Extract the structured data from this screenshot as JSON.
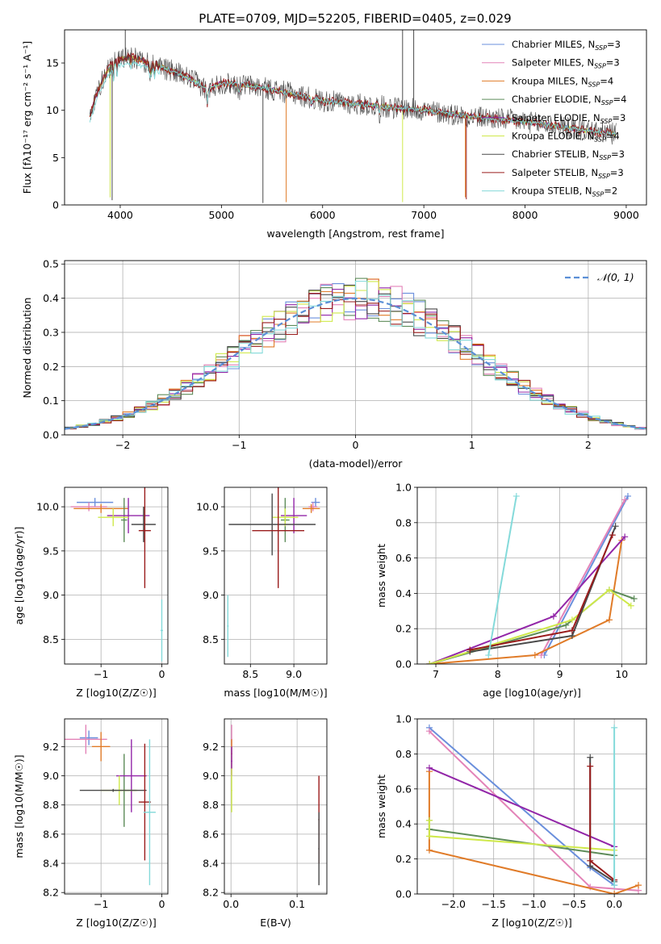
{
  "title": "PLATE=0709, MJD=52205, FIBERID=0405, z=0.029",
  "colors": {
    "chabrier_miles": "#6a8fdc",
    "salpeter_miles": "#e383b8",
    "kroupa_miles": "#e07b28",
    "chabrier_elodie": "#5e8c5a",
    "salpeter_elodie": "#9226a8",
    "kroupa_elodie": "#cfe94a",
    "chabrier_stelib": "#4a4a4a",
    "salpeter_stelib": "#9a1c1c",
    "kroupa_stelib": "#84dada",
    "normal": "#5b8fd6"
  },
  "chart_data": [
    {
      "id": "spectrum",
      "type": "line",
      "xlabel": "wavelength [Angstrom, rest frame]",
      "ylabel": "Flux [fλ10⁻¹⁷ erg cm⁻² s⁻¹ A⁻¹]",
      "xlim": [
        3450,
        9200
      ],
      "ylim": [
        0,
        18.5
      ],
      "xticks": [
        4000,
        5000,
        6000,
        7000,
        8000,
        9000
      ],
      "yticks": [
        0,
        5,
        10,
        15
      ],
      "grid": false,
      "legend": "top-right",
      "continuum": [
        [
          3700,
          9.5
        ],
        [
          3760,
          11.5
        ],
        [
          3850,
          13.8
        ],
        [
          3950,
          15.3
        ],
        [
          4100,
          15.6
        ],
        [
          4300,
          15.0
        ],
        [
          4500,
          14.2
        ],
        [
          4700,
          13.3
        ],
        [
          4860,
          12.2
        ],
        [
          5000,
          12.9
        ],
        [
          5300,
          12.6
        ],
        [
          5600,
          12.0
        ],
        [
          6000,
          11.0
        ],
        [
          6500,
          10.5
        ],
        [
          7000,
          10.0
        ],
        [
          7500,
          9.3
        ],
        [
          8000,
          8.8
        ],
        [
          8500,
          8.0
        ],
        [
          8900,
          7.5
        ]
      ],
      "legend_entries": [
        "Chabrier MILES, N_SSP=3",
        "Salpeter MILES, N_SSP=3",
        "Kroupa MILES, N_SSP=4",
        "Chabrier ELODIE, N_SSP=4",
        "Salpeter ELODIE, N_SSP=3",
        "Kroupa ELODIE, N_SSP=4",
        "Chabrier STELIB, N_SSP=3",
        "Salpeter STELIB, N_SSP=3",
        "Kroupa STELIB, N_SSP=2"
      ],
      "legend_labels": [
        {
          "name": "Chabrier MILES, N",
          "sub": "SSP",
          "tail": "=3"
        },
        {
          "name": "Salpeter MILES, N",
          "sub": "SSP",
          "tail": "=3"
        },
        {
          "name": "Kroupa MILES, N",
          "sub": "SSP",
          "tail": "=4"
        },
        {
          "name": "Chabrier ELODIE, N",
          "sub": "SSP",
          "tail": "=4"
        },
        {
          "name": "Salpeter ELODIE, N",
          "sub": "SSP",
          "tail": "=3"
        },
        {
          "name": "Kroupa ELODIE, N",
          "sub": "SSP",
          "tail": "=4"
        },
        {
          "name": "Chabrier STELIB, N",
          "sub": "SSP",
          "tail": "=3"
        },
        {
          "name": "Salpeter STELIB, N",
          "sub": "SSP",
          "tail": "=3"
        },
        {
          "name": "Kroupa STELIB, N",
          "sub": "SSP",
          "tail": "=2"
        }
      ]
    },
    {
      "id": "residuals",
      "type": "histogram",
      "xlabel": "(data-model)/error",
      "ylabel": "Normed distribution",
      "xlim": [
        -2.5,
        2.5
      ],
      "ylim": [
        0,
        0.51
      ],
      "xticks": [
        -2,
        -1,
        0,
        1,
        2
      ],
      "yticks": [
        0.0,
        0.1,
        0.2,
        0.3,
        0.4,
        0.5
      ],
      "grid": true,
      "legend": "top-right",
      "normal_curve": {
        "label": "𝒩(0, 1)",
        "mean": 0,
        "sigma": 1
      },
      "bin_width": 0.1
    },
    {
      "id": "age-vs-Z",
      "type": "errorbar",
      "xlabel": "Z [log10(Z/Z☉)]",
      "ylabel": "age  [log10(age/yr)]",
      "xlim": [
        -1.6,
        0.1
      ],
      "ylim": [
        8.22,
        10.22
      ],
      "xticks": [
        -1,
        0
      ],
      "yticks": [
        8.5,
        9.0,
        9.5,
        10.0
      ],
      "grid": true,
      "points": [
        {
          "c": "chabrier_miles",
          "x": -1.1,
          "xe": 0.3,
          "y": 10.05,
          "ye": 0.05
        },
        {
          "c": "salpeter_miles",
          "x": -1.2,
          "xe": 0.3,
          "y": 10.0,
          "ye": 0.05
        },
        {
          "c": "kroupa_miles",
          "x": -1.0,
          "xe": 0.45,
          "y": 9.98,
          "ye": 0.05
        },
        {
          "c": "chabrier_elodie",
          "x": -0.62,
          "xe": 0.05,
          "y": 9.85,
          "ye": 0.25
        },
        {
          "c": "salpeter_elodie",
          "x": -0.55,
          "xe": 0.35,
          "y": 9.9,
          "ye": 0.2
        },
        {
          "c": "kroupa_elodie",
          "x": -0.8,
          "xe": 0.25,
          "y": 9.88,
          "ye": 0.1
        },
        {
          "c": "chabrier_stelib",
          "x": -0.3,
          "xe": 0.2,
          "y": 9.8,
          "ye": 0.2
        },
        {
          "c": "salpeter_stelib",
          "x": -0.28,
          "xe": 0.1,
          "y": 9.73,
          "ye": 0.65
        },
        {
          "c": "kroupa_stelib",
          "x": 0.0,
          "xe": 0.02,
          "y": 8.6,
          "ye": 0.35
        }
      ]
    },
    {
      "id": "age-vs-mass",
      "type": "errorbar",
      "xlabel": "mass [log10(M/M☉)]",
      "ylabel": "",
      "xlim": [
        8.2,
        9.38
      ],
      "ylim": [
        8.22,
        10.22
      ],
      "xticks": [
        8.5,
        9.0
      ],
      "yticks": [
        8.5,
        9.0,
        9.5,
        10.0
      ],
      "grid": true,
      "points": [
        {
          "c": "chabrier_miles",
          "x": 9.25,
          "xe": 0.05,
          "y": 10.05,
          "ye": 0.05
        },
        {
          "c": "salpeter_miles",
          "x": 9.22,
          "xe": 0.05,
          "y": 10.0,
          "ye": 0.05
        },
        {
          "c": "kroupa_miles",
          "x": 9.2,
          "xe": 0.1,
          "y": 9.98,
          "ye": 0.05
        },
        {
          "c": "chabrier_elodie",
          "x": 8.9,
          "xe": 0.05,
          "y": 9.85,
          "ye": 0.25
        },
        {
          "c": "salpeter_elodie",
          "x": 9.0,
          "xe": 0.15,
          "y": 9.9,
          "ye": 0.2
        },
        {
          "c": "kroupa_elodie",
          "x": 8.9,
          "xe": 0.15,
          "y": 9.88,
          "ye": 0.1
        },
        {
          "c": "chabrier_stelib",
          "x": 8.75,
          "xe": 0.5,
          "y": 9.8,
          "ye": 0.35
        },
        {
          "c": "salpeter_stelib",
          "x": 8.82,
          "xe": 0.3,
          "y": 9.73,
          "ye": 0.65
        },
        {
          "c": "kroupa_stelib",
          "x": 8.24,
          "xe": 0.01,
          "y": 8.65,
          "ye": 0.35
        }
      ]
    },
    {
      "id": "weight-vs-age",
      "type": "line",
      "xlabel": "age  [log10(age/yr)]",
      "ylabel": "mass weight",
      "xlim": [
        6.7,
        10.4
      ],
      "ylim": [
        0,
        1.0
      ],
      "xticks": [
        7,
        8,
        9,
        10
      ],
      "yticks": [
        0.0,
        0.2,
        0.4,
        0.6,
        0.8,
        1.0
      ],
      "grid": true,
      "series": [
        {
          "c": "chabrier_miles",
          "points": [
            [
              8.75,
              0.05
            ],
            [
              10.1,
              0.95
            ]
          ]
        },
        {
          "c": "salpeter_miles",
          "points": [
            [
              8.7,
              0.05
            ],
            [
              10.05,
              0.93
            ]
          ]
        },
        {
          "c": "kroupa_miles",
          "points": [
            [
              6.9,
              0.0
            ],
            [
              8.6,
              0.05
            ],
            [
              9.8,
              0.25
            ],
            [
              10.0,
              0.7
            ]
          ]
        },
        {
          "c": "chabrier_elodie",
          "points": [
            [
              6.9,
              0.0
            ],
            [
              9.1,
              0.22
            ],
            [
              9.8,
              0.42
            ],
            [
              10.2,
              0.37
            ]
          ]
        },
        {
          "c": "salpeter_elodie",
          "points": [
            [
              6.9,
              0.0
            ],
            [
              8.9,
              0.27
            ],
            [
              10.05,
              0.72
            ]
          ]
        },
        {
          "c": "kroupa_elodie",
          "points": [
            [
              6.9,
              0.0
            ],
            [
              9.2,
              0.25
            ],
            [
              9.8,
              0.42
            ],
            [
              10.15,
              0.33
            ]
          ]
        },
        {
          "c": "chabrier_stelib",
          "points": [
            [
              7.55,
              0.07
            ],
            [
              9.2,
              0.16
            ],
            [
              9.9,
              0.78
            ]
          ]
        },
        {
          "c": "salpeter_stelib",
          "points": [
            [
              7.55,
              0.08
            ],
            [
              9.2,
              0.19
            ],
            [
              9.85,
              0.73
            ]
          ]
        },
        {
          "c": "kroupa_stelib",
          "points": [
            [
              7.85,
              0.05
            ],
            [
              8.3,
              0.95
            ]
          ]
        }
      ]
    },
    {
      "id": "mass-vs-Z",
      "type": "errorbar",
      "xlabel": "Z [log10(Z/Z☉)]",
      "ylabel": "mass [log10(M/M☉)]",
      "xlim": [
        -1.6,
        0.1
      ],
      "ylim": [
        8.19,
        9.39
      ],
      "xticks": [
        -1,
        0
      ],
      "yticks": [
        8.2,
        8.4,
        8.6,
        8.8,
        9.0,
        9.2
      ],
      "grid": true,
      "points": [
        {
          "c": "chabrier_miles",
          "x": -1.2,
          "xe": 0.15,
          "y": 9.26,
          "ye": 0.05
        },
        {
          "c": "salpeter_miles",
          "x": -1.25,
          "xe": 0.35,
          "y": 9.25,
          "ye": 0.1
        },
        {
          "c": "kroupa_miles",
          "x": -1.0,
          "xe": 0.15,
          "y": 9.2,
          "ye": 0.1
        },
        {
          "c": "chabrier_elodie",
          "x": -0.62,
          "xe": 0.2,
          "y": 8.9,
          "ye": 0.25
        },
        {
          "c": "salpeter_elodie",
          "x": -0.5,
          "xe": 0.25,
          "y": 9.0,
          "ye": 0.25
        },
        {
          "c": "kroupa_elodie",
          "x": -0.7,
          "xe": 0.3,
          "y": 8.9,
          "ye": 0.1
        },
        {
          "c": "chabrier_stelib",
          "x": -0.8,
          "xe": 0.55,
          "y": 8.9,
          "ye": 0.01
        },
        {
          "c": "salpeter_stelib",
          "x": -0.28,
          "xe": 0.1,
          "y": 8.82,
          "ye": 0.4
        },
        {
          "c": "kroupa_stelib",
          "x": -0.2,
          "xe": 0.1,
          "y": 8.75,
          "ye": 0.5
        }
      ]
    },
    {
      "id": "mass-vs-ebv",
      "type": "errorbar",
      "xlabel": "E(B-V)",
      "ylabel": "",
      "xlim": [
        -0.01,
        0.145
      ],
      "ylim": [
        8.19,
        9.39
      ],
      "xticks": [
        0.0,
        0.1
      ],
      "yticks": [
        8.2,
        8.4,
        8.6,
        8.8,
        9.0,
        9.2
      ],
      "grid": true,
      "points": [
        {
          "c": "salpeter_miles",
          "x": 0.001,
          "xe": 0.001,
          "y": 9.25,
          "ye": 0.1
        },
        {
          "c": "kroupa_miles",
          "x": 0.001,
          "xe": 0.001,
          "y": 9.15,
          "ye": 0.1
        },
        {
          "c": "salpeter_elodie",
          "x": 0.001,
          "xe": 0.001,
          "y": 9.1,
          "ye": 0.1
        },
        {
          "c": "kroupa_elodie",
          "x": 0.001,
          "xe": 0.001,
          "y": 8.9,
          "ye": 0.15
        },
        {
          "c": "salpeter_stelib",
          "x": 0.133,
          "xe": 0.001,
          "y": 8.7,
          "ye": 0.3
        },
        {
          "c": "chabrier_stelib",
          "x": 0.133,
          "xe": 0.001,
          "y": 8.5,
          "ye": 0.25
        }
      ]
    },
    {
      "id": "weight-vs-Z",
      "type": "line",
      "xlabel": "Z [log10(Z/Z☉)]",
      "ylabel": "mass weight",
      "xlim": [
        -2.45,
        0.4
      ],
      "ylim": [
        0,
        1.0
      ],
      "xticks": [
        -2.0,
        -1.5,
        -1.0,
        -0.5,
        0.0
      ],
      "yticks": [
        0.0,
        0.2,
        0.4,
        0.6,
        0.8,
        1.0
      ],
      "grid": true,
      "series": [
        {
          "c": "chabrier_miles",
          "points": [
            [
              -2.3,
              0.95
            ],
            [
              -0.3,
              0.15
            ],
            [
              0.0,
              0.05
            ]
          ]
        },
        {
          "c": "salpeter_miles",
          "points": [
            [
              -2.3,
              0.93
            ],
            [
              -0.3,
              0.04
            ],
            [
              0.3,
              0.02
            ]
          ]
        },
        {
          "c": "kroupa_miles",
          "points": [
            [
              -2.3,
              0.7
            ],
            [
              -2.3,
              0.25
            ],
            [
              0.0,
              0.0
            ],
            [
              0.3,
              0.05
            ]
          ]
        },
        {
          "c": "chabrier_elodie",
          "points": [
            [
              -2.3,
              0.42
            ],
            [
              -2.3,
              0.37
            ],
            [
              0.0,
              0.22
            ]
          ]
        },
        {
          "c": "salpeter_elodie",
          "points": [
            [
              -2.3,
              0.72
            ],
            [
              0.0,
              0.27
            ]
          ]
        },
        {
          "c": "kroupa_elodie",
          "points": [
            [
              -2.3,
              0.42
            ],
            [
              -2.3,
              0.33
            ],
            [
              0.0,
              0.25
            ]
          ]
        },
        {
          "c": "chabrier_stelib",
          "points": [
            [
              -0.3,
              0.78
            ],
            [
              -0.3,
              0.16
            ],
            [
              0.0,
              0.07
            ]
          ]
        },
        {
          "c": "salpeter_stelib",
          "points": [
            [
              -0.3,
              0.73
            ],
            [
              -0.3,
              0.19
            ],
            [
              0.0,
              0.08
            ]
          ]
        },
        {
          "c": "kroupa_stelib",
          "points": [
            [
              0.0,
              0.95
            ],
            [
              0.0,
              0.05
            ]
          ]
        }
      ]
    }
  ]
}
